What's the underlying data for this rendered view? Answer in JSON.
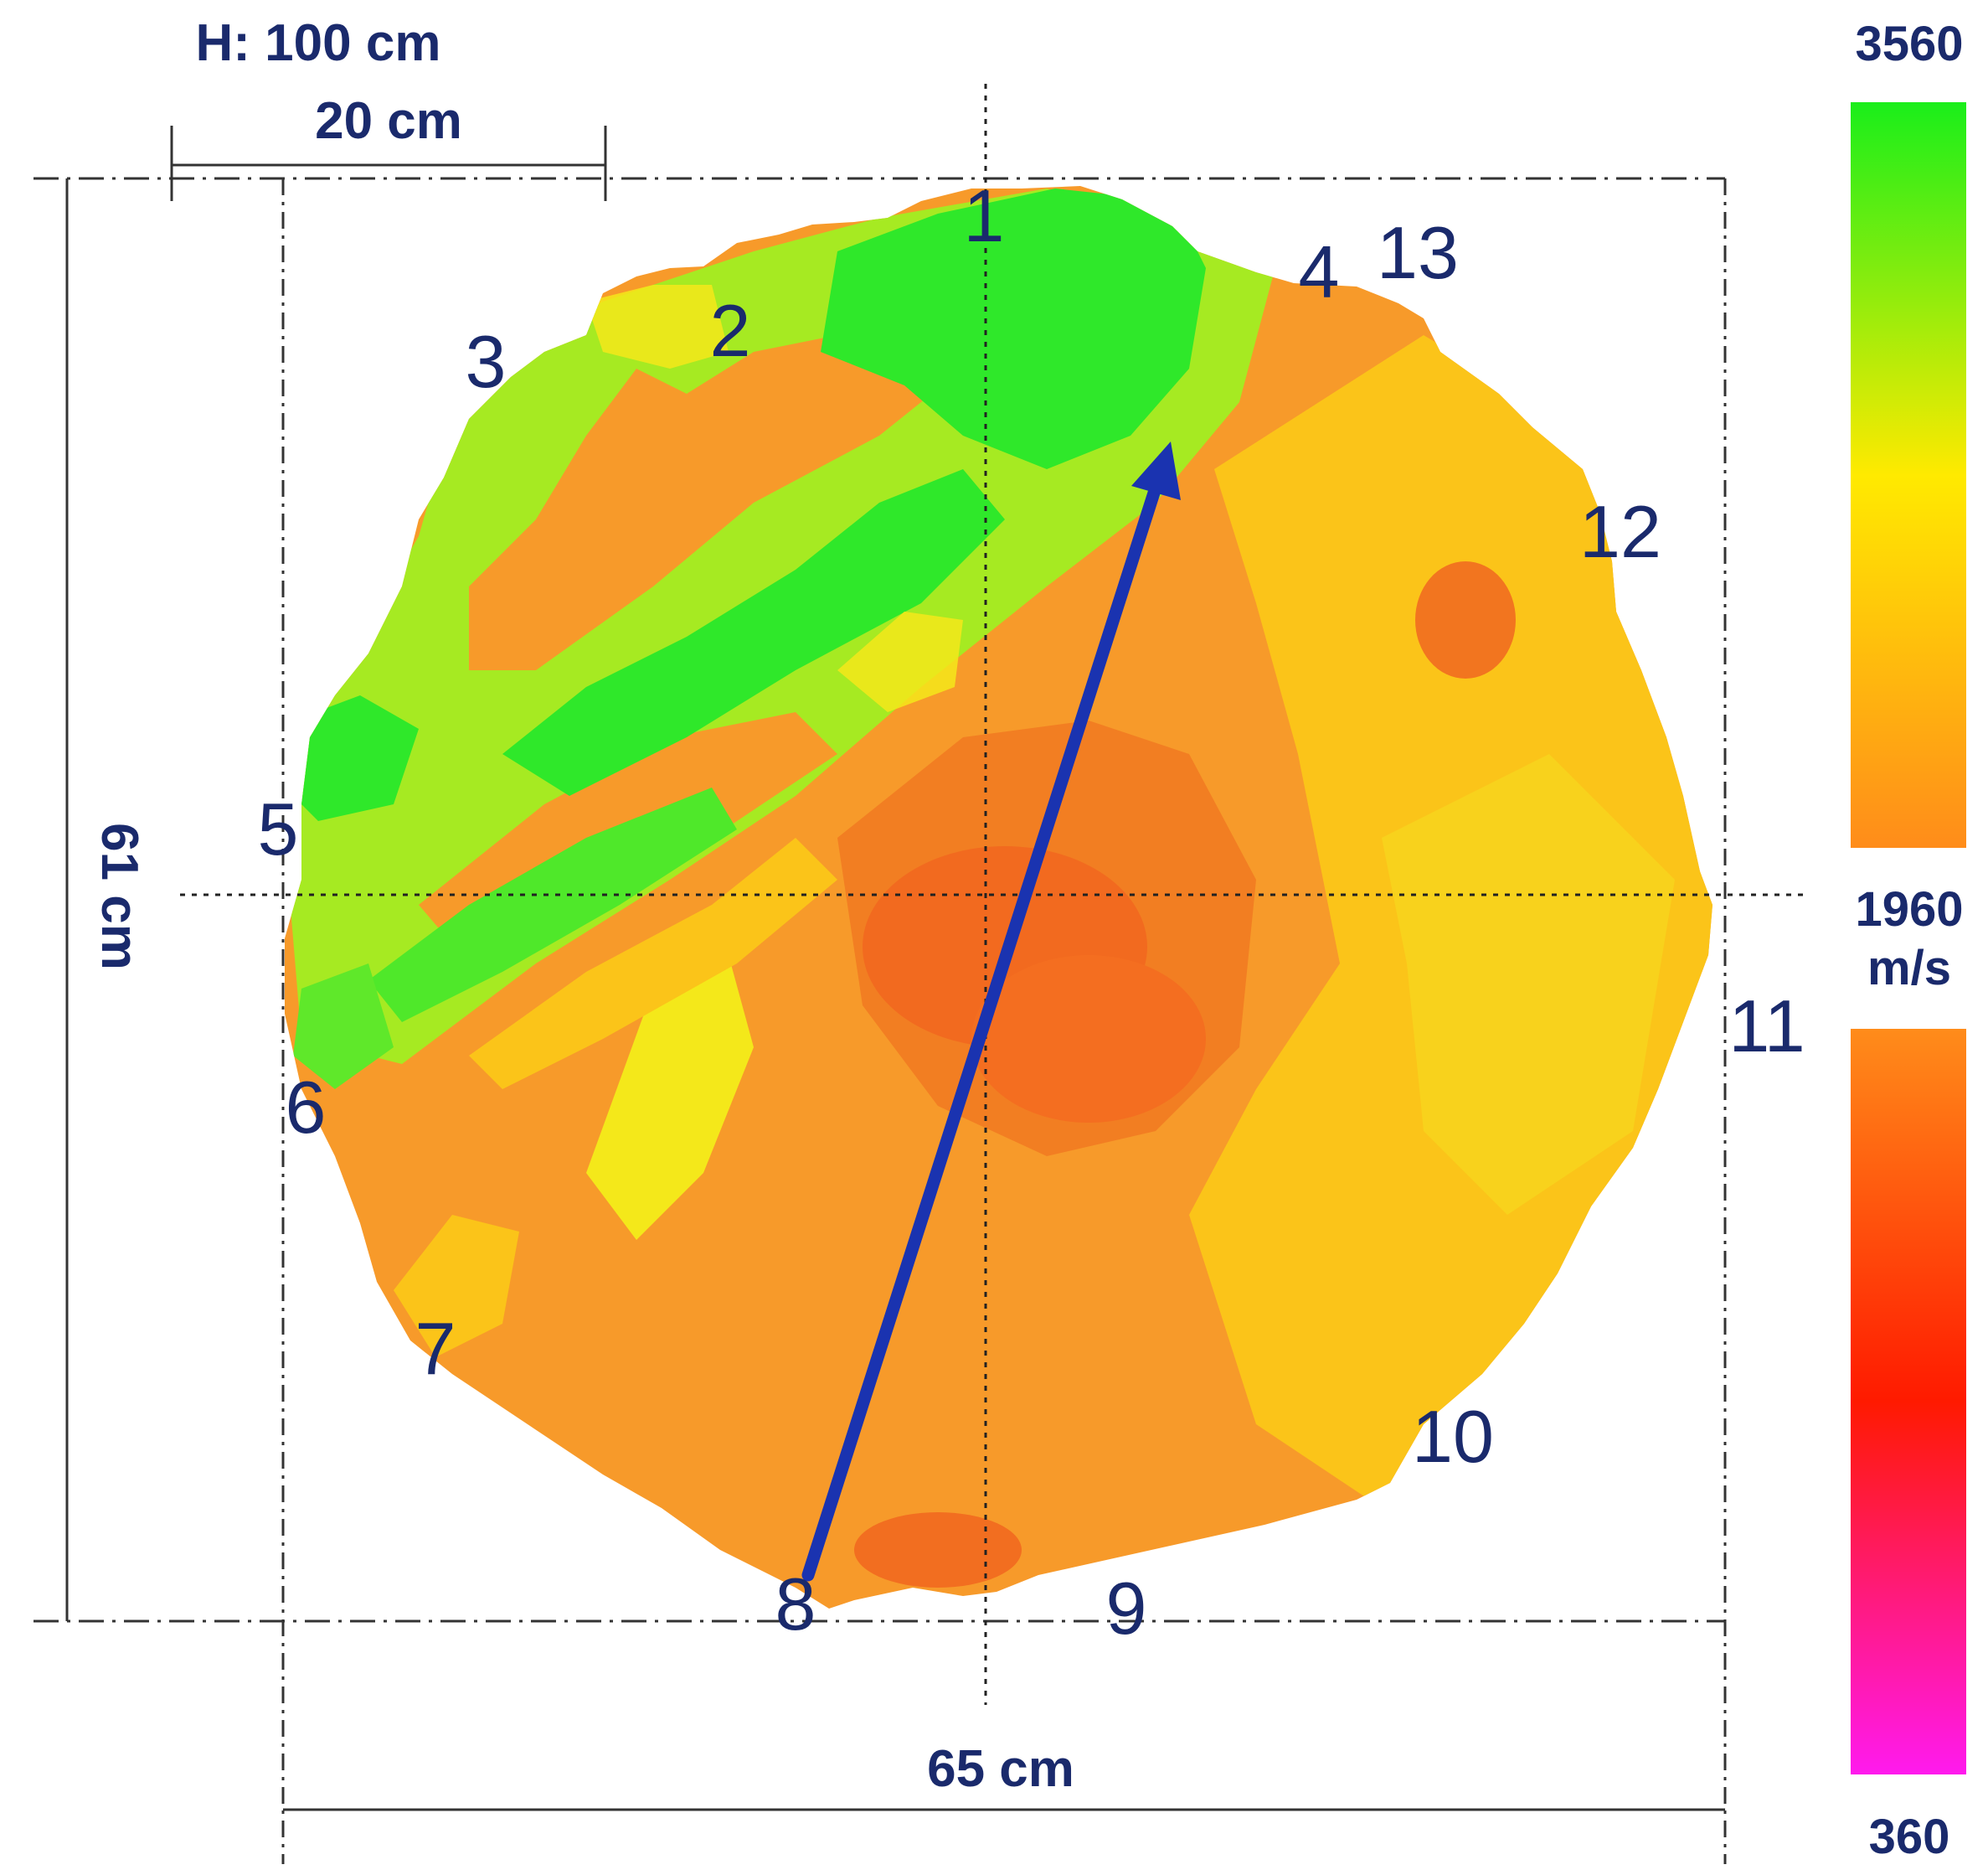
{
  "diagram": {
    "height_label": "H: 100 cm",
    "scale_bar_label": "20 cm",
    "height_dim_label": "61 cm",
    "width_dim_label": "65 cm",
    "sensors": [
      "1",
      "2",
      "3",
      "4",
      "5",
      "6",
      "7",
      "8",
      "9",
      "10",
      "11",
      "12",
      "13"
    ],
    "direction_arrow": {
      "from_sensor": "8",
      "to_sensor": "1",
      "color": "#1a33b0"
    }
  },
  "legend": {
    "max_label": "3560",
    "mid_value": "1960",
    "mid_unit": "m/s",
    "min_label": "360",
    "colors": {
      "green": "#1aee1a",
      "yellow": "#ffea00",
      "orange": "#ff8c1a",
      "red": "#ff1a00",
      "magenta": "#ff1aee"
    }
  },
  "map_colors": {
    "orange": "#f79a2a",
    "dark_orange": "#f26a1f",
    "yellow_orange": "#fbc419",
    "yellow": "#f4e81a",
    "lime": "#a6ea22",
    "green": "#2fe82a"
  }
}
